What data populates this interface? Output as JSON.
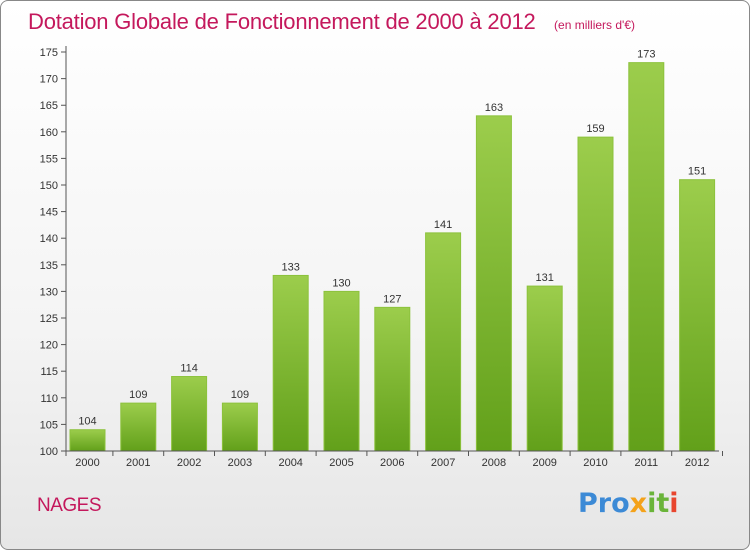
{
  "chart_data": {
    "type": "bar",
    "title": "Dotation Globale de Fonctionnement de 2000 à 2012",
    "subtitle": "(en milliers d'€)",
    "categories": [
      "2000",
      "2001",
      "2002",
      "2003",
      "2004",
      "2005",
      "2006",
      "2007",
      "2008",
      "2009",
      "2010",
      "2011",
      "2012"
    ],
    "values": [
      104,
      109,
      114,
      109,
      133,
      130,
      127,
      141,
      163,
      131,
      159,
      173,
      151
    ],
    "data_labels": [
      "104",
      "109",
      "114",
      "109",
      "133",
      "130",
      "127",
      "141",
      "163",
      "131",
      "159",
      "173",
      "151"
    ],
    "ylim": [
      100,
      175
    ],
    "yticks": [
      "100",
      "105",
      "110",
      "115",
      "120",
      "125",
      "130",
      "135",
      "140",
      "145",
      "150",
      "155",
      "160",
      "165",
      "170",
      "175"
    ],
    "xlabel": "",
    "ylabel": "",
    "grid": false,
    "legend": "none",
    "bar_color_top": "#9ccd4c",
    "bar_color_bottom": "#62a01a"
  },
  "commune": "NAGES",
  "logo": {
    "part1": "Pro",
    "part2": "x",
    "part3": "it",
    "part4": "i"
  },
  "colors": {
    "title": "#c4185c",
    "axis": "#555555"
  }
}
